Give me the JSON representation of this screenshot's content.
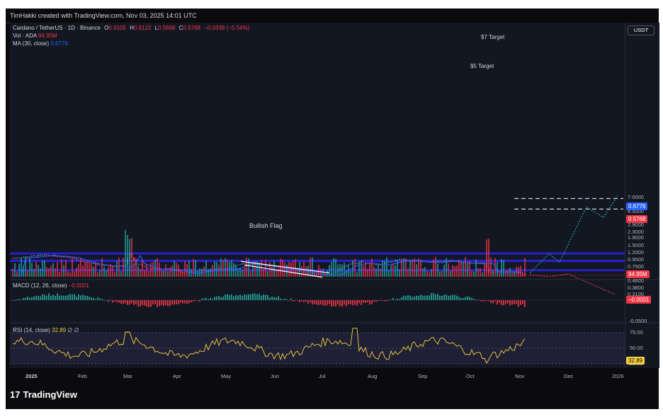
{
  "header": {
    "attribution": "TimHakki created with TradingView.com, Nov 03, 2025 14:01 UTC"
  },
  "legend": {
    "symbol": "Cardano / TetherUS · 1D · Binance",
    "ohlc_o_label": "O",
    "ohlc_o": "0.6105",
    "ohlc_h_label": "H",
    "ohlc_h": "0.6122",
    "ohlc_l_label": "L",
    "ohlc_l": "0.5668",
    "ohlc_c_label": "C",
    "ohlc_c": "0.5768",
    "change": "−0.0338 (−5.54%)",
    "vol_label": "Vol · ADA",
    "vol_value": "94.95M",
    "ma_label": "MA (30, close)",
    "ma_value": "0.6776",
    "macd_label": "MACD (12, 26, close)",
    "macd_value": "−0.0001",
    "rsi_label": "RSI (14, close)",
    "rsi_value": "32.89",
    "rsi_extra": "∅ ∅"
  },
  "annotations": {
    "bullish_flag": "Bullish Flag",
    "target7": "$7 Target",
    "target5": "$5 Target"
  },
  "currency": "USDT",
  "price_badges": {
    "ma": "0.6776",
    "close": "0.5768",
    "volume": "94.95M",
    "macd": "−0.0001",
    "rsi": "32.89"
  },
  "brand": {
    "name": "TradingView",
    "glyph": "17"
  },
  "colors": {
    "up": "#26a69a",
    "down": "#f23645",
    "ma": "#2962ff",
    "zone": "#2b21d9",
    "rsi": "#f5d142",
    "projection": "#26a69a"
  },
  "chart_data": {
    "type": "candlestick",
    "x_ticks": [
      "2025",
      "Feb",
      "Mar",
      "Apr",
      "May",
      "Jun",
      "Jul",
      "Aug",
      "Sep",
      "Oct",
      "Nov",
      "Dec",
      "2026"
    ],
    "y_ticks": [
      "7.0000",
      "5.5000",
      "4.5000",
      "3.5000",
      "2.9000",
      "2.3000",
      "1.9000",
      "1.5000",
      "1.2000",
      "0.9500",
      "0.7500",
      "0.6000",
      "0.4800",
      "0.3800",
      "0.3100"
    ],
    "y_scale": "log",
    "resistance_zones": [
      [
        1.12,
        1.2
      ],
      [
        0.88,
        0.95
      ],
      [
        0.66,
        0.7
      ]
    ],
    "bullish_flag": {
      "upper": [
        [
          0.98,
          0.62
        ]
      ],
      "lower": [
        [
          0.92,
          0.55
        ]
      ]
    },
    "targets": [
      {
        "label": "$7 Target",
        "price": 6.8
      },
      {
        "label": "$5 Target",
        "price": 4.85
      }
    ],
    "macd_ticks": [
      "-0.0500"
    ],
    "rsi_ticks": [
      "75.00",
      "50.00",
      "25.00"
    ],
    "last_close": 0.5768,
    "ma30": 0.6776
  }
}
